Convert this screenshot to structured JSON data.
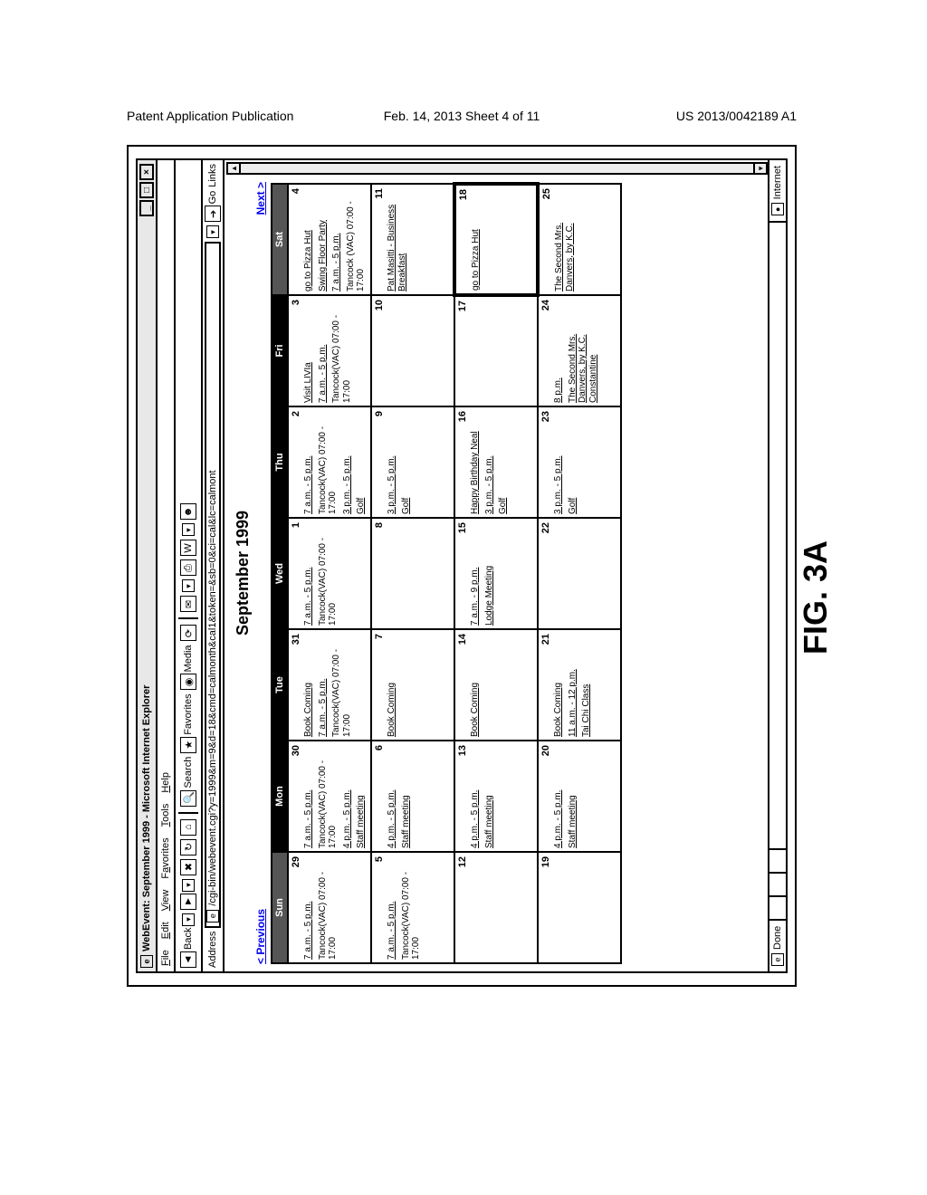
{
  "patent_header": {
    "left": "Patent Application Publication",
    "mid": "Feb. 14, 2013  Sheet 4 of 11",
    "right": "US 2013/0042189 A1"
  },
  "figure_label": "FIG. 3A",
  "window": {
    "title": "WebEvent: September 1999 - Microsoft Internet Explorer",
    "menu": {
      "file": "File",
      "edit": "Edit",
      "view": "View",
      "favorites": "Favorites",
      "tools": "Tools",
      "help": "Help"
    },
    "toolbar": {
      "back": "Back",
      "search": "Search",
      "favorites": "Favorites",
      "media": "Media",
      "go": "Go",
      "links": "Links"
    },
    "address_label": "Address",
    "address_url": "/cgi-bin/webevent.cgi?y=1999&m=9&d=18&cmd=calmonth&cal1&token=&sb=0&ci=cal&lc=calmont",
    "status_left": "Done",
    "status_right": "Internet"
  },
  "calendar": {
    "title": "September 1999",
    "prev": "< Previous",
    "next": "Next >",
    "day_headers": [
      "Sun",
      "Mon",
      "Tue",
      "Wed",
      "Thu",
      "Fri",
      "Sat"
    ],
    "weeks": [
      [
        {
          "n": "29",
          "events": [
            {
              "t": "7 a.m. - 5 p.m.",
              "u": true
            },
            {
              "t": "Tancock(VAC) 07:00 - 17:00",
              "u": false
            }
          ]
        },
        {
          "n": "30",
          "events": [
            {
              "t": "7 a.m. - 5 p.m.",
              "u": true
            },
            {
              "t": "Tancock(VAC) 07:00 - 17:00",
              "u": false
            },
            {
              "t": "4 p.m. - 5 p.m.",
              "u": true
            },
            {
              "t": "Staff meeting",
              "u": true
            }
          ]
        },
        {
          "n": "31",
          "events": [
            {
              "t": "Book Coming",
              "u": true
            },
            {
              "t": "7 a.m. - 5 p.m.",
              "u": true
            },
            {
              "t": "Tancock(VAC) 07:00 - 17:00",
              "u": false
            }
          ]
        },
        {
          "n": "1",
          "events": [
            {
              "t": "7 a.m. - 5 p.m.",
              "u": true
            },
            {
              "t": "Tancock(VAC) 07:00 - 17:00",
              "u": false
            }
          ]
        },
        {
          "n": "2",
          "events": [
            {
              "t": "7 a.m. - 5 p.m.",
              "u": true
            },
            {
              "t": "Tancock(VAC) 07:00 - 17:00",
              "u": false
            },
            {
              "t": "3 p.m. - 5 p.m.",
              "u": true
            },
            {
              "t": "Golf",
              "u": true
            }
          ]
        },
        {
          "n": "3",
          "events": [
            {
              "t": "Visit LIVIa",
              "u": true
            },
            {
              "t": "7 a.m. - 5 p.m.",
              "u": true
            },
            {
              "t": "Tancock(VAC) 07:00 - 17:00",
              "u": false
            }
          ]
        },
        {
          "n": "4",
          "events": [
            {
              "t": "go to Pizza Hut",
              "u": true
            },
            {
              "t": "Swing Floor Party",
              "u": true
            },
            {
              "t": "7 a.m. - 5 p.m.",
              "u": true
            },
            {
              "t": "Tancock (VAC) 07:00 - 17:00",
              "u": false
            }
          ]
        }
      ],
      [
        {
          "n": "5",
          "events": [
            {
              "t": "7 a.m. - 5 p.m.",
              "u": true
            },
            {
              "t": "Tancock(VAC) 07:00 - 17:00",
              "u": false
            }
          ]
        },
        {
          "n": "6",
          "events": [
            {
              "t": "4 p.m. - 5 p.m.",
              "u": true
            },
            {
              "t": "Staff meeting",
              "u": true
            }
          ]
        },
        {
          "n": "7",
          "events": [
            {
              "t": "Book Coming",
              "u": true
            }
          ]
        },
        {
          "n": "8",
          "events": []
        },
        {
          "n": "9",
          "events": [
            {
              "t": "3 p.m. - 5 p.m.",
              "u": true
            },
            {
              "t": "Golf",
              "u": true
            }
          ]
        },
        {
          "n": "10",
          "events": []
        },
        {
          "n": "11",
          "events": [
            {
              "t": "Pat Masitti - Business Breakfast",
              "u": true
            }
          ]
        }
      ],
      [
        {
          "n": "12",
          "events": []
        },
        {
          "n": "13",
          "events": [
            {
              "t": "4 p.m. - 5 p.m.",
              "u": true
            },
            {
              "t": "Staff meeting",
              "u": true
            }
          ]
        },
        {
          "n": "14",
          "events": [
            {
              "t": "Book Coming",
              "u": true
            }
          ]
        },
        {
          "n": "15",
          "events": [
            {
              "t": "7 a.m. - 9 p.m.",
              "u": true
            },
            {
              "t": "Lodge Meeting",
              "u": true
            }
          ]
        },
        {
          "n": "16",
          "events": [
            {
              "t": "Happy Birthday Neal",
              "u": true
            },
            {
              "t": "3 p.m. - 5 p.m.",
              "u": true
            },
            {
              "t": "Golf",
              "u": true
            }
          ]
        },
        {
          "n": "17",
          "events": []
        },
        {
          "n": "18",
          "today": true,
          "events": [
            {
              "t": "go to Pizza Hut",
              "u": true
            }
          ]
        }
      ],
      [
        {
          "n": "19",
          "events": []
        },
        {
          "n": "20",
          "events": [
            {
              "t": "4 p.m. - 5 p.m.",
              "u": true
            },
            {
              "t": "Staff meeting",
              "u": true
            }
          ]
        },
        {
          "n": "21",
          "events": [
            {
              "t": "Book Coming",
              "u": true
            },
            {
              "t": "11 a.m. - 12 p.m.",
              "u": true
            },
            {
              "t": "Tai Chi Class",
              "u": true
            }
          ]
        },
        {
          "n": "22",
          "events": []
        },
        {
          "n": "23",
          "events": [
            {
              "t": "3 p.m. - 5 p.m.",
              "u": true
            },
            {
              "t": "Golf",
              "u": true
            }
          ]
        },
        {
          "n": "24",
          "events": [
            {
              "t": "8 p.m.",
              "u": true
            },
            {
              "t": "The Second Mrs. Danvers, by K.C. Constantine",
              "u": true
            }
          ]
        },
        {
          "n": "25",
          "events": [
            {
              "t": "The Second Mrs. Danvers, by K.C.",
              "u": true
            }
          ]
        }
      ]
    ]
  }
}
